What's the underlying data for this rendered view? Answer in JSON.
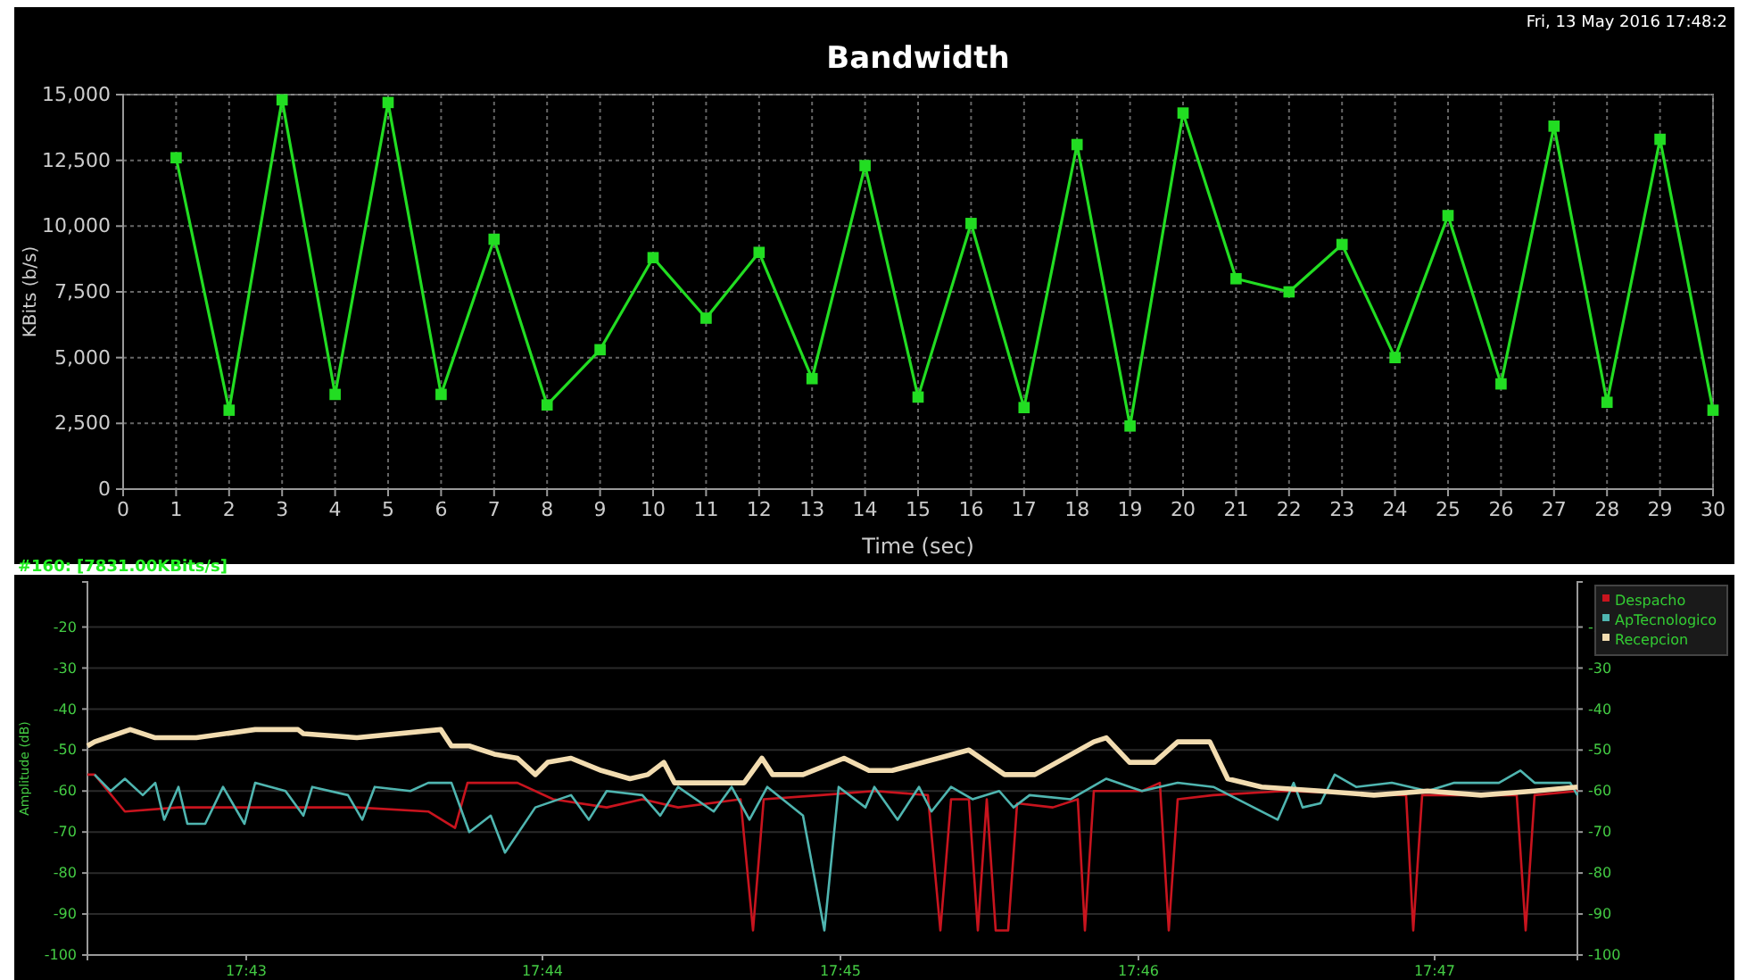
{
  "chart_data": [
    {
      "type": "line",
      "title": "Bandwidth",
      "xlabel": "Time (sec)",
      "ylabel": "KBits (b/s)",
      "annotations": [
        "Fri, 13 May 2016 17:48:2"
      ],
      "x": [
        1,
        2,
        3,
        4,
        5,
        6,
        7,
        8,
        9,
        10,
        11,
        12,
        13,
        14,
        15,
        16,
        17,
        18,
        19,
        20,
        21,
        22,
        23,
        24,
        25,
        26,
        27,
        28,
        29,
        30
      ],
      "series": [
        {
          "color": "#22dd22",
          "values": [
            12600,
            3000,
            14800,
            3600,
            14700,
            3600,
            9500,
            3200,
            5300,
            8800,
            6500,
            9000,
            4200,
            12300,
            3500,
            10100,
            3100,
            13100,
            2400,
            14300,
            8000,
            7500,
            9300,
            5000,
            10400,
            4000,
            13800,
            3300,
            13300,
            3000
          ]
        }
      ],
      "xlim": [
        0,
        30
      ],
      "xticks": [
        0,
        1,
        2,
        3,
        4,
        5,
        6,
        7,
        8,
        9,
        10,
        11,
        12,
        13,
        14,
        15,
        16,
        17,
        18,
        19,
        20,
        21,
        22,
        23,
        24,
        25,
        26,
        27,
        28,
        29,
        30
      ],
      "ylim": [
        0,
        15000
      ],
      "yticks": [
        0,
        {
          "value": 2500,
          "label": "2,500"
        },
        {
          "value": 5000,
          "label": "5,000"
        },
        {
          "value": 7500,
          "label": "7,500"
        },
        {
          "value": 10000,
          "label": "10,000"
        },
        {
          "value": 12500,
          "label": "12,500"
        },
        {
          "value": 15000,
          "label": "15,000"
        }
      ],
      "grid": true,
      "marker": "square",
      "legend": false
    },
    {
      "type": "line",
      "ylabel": "Amplitude (dB)",
      "annotations": [
        "#160: [7831.00KBits/s]"
      ],
      "series": [
        {
          "name": "Despacho",
          "color": "#c8141e",
          "x": [
            17.7078,
            17.7082,
            17.7099,
            17.7129,
            17.7179,
            17.7229,
            17.7269,
            17.7284,
            17.7291,
            17.7319,
            17.7339,
            17.7369,
            17.7389,
            17.7409,
            17.7444,
            17.7451,
            17.7457,
            17.7489,
            17.7519,
            17.7549,
            17.7556,
            17.7562,
            17.7572,
            17.7577,
            17.7582,
            17.7587,
            17.7594,
            17.7599,
            17.7619,
            17.7633,
            17.7637,
            17.7642,
            17.7669,
            17.7679,
            17.7684,
            17.7689,
            17.7709,
            17.7749,
            17.7817,
            17.7821,
            17.7826,
            17.7879,
            17.7884,
            17.7889,
            17.7913
          ],
          "values": [
            -56,
            -56,
            -65,
            -64,
            -64,
            -64,
            -65,
            -69,
            -58,
            -58,
            -62,
            -64,
            -62,
            -64,
            -62,
            -94,
            -62,
            -61,
            -60,
            -61,
            -94,
            -62,
            -62,
            -94,
            -62,
            -94,
            -94,
            -63,
            -64,
            -62,
            -94,
            -60,
            -60,
            -58,
            -94,
            -62,
            -61,
            -60,
            -61,
            -94,
            -61,
            -61,
            -94,
            -61,
            -60
          ]
        },
        {
          "name": "ApTecnologico",
          "color": "#4fb5b0",
          "x": [
            17.7082,
            17.7091,
            17.7099,
            17.7109,
            17.7116,
            17.7121,
            17.7129,
            17.7134,
            17.7144,
            17.7154,
            17.7166,
            17.7172,
            17.7189,
            17.7199,
            17.7204,
            17.7224,
            17.7232,
            17.7239,
            17.7259,
            17.7269,
            17.7282,
            17.7292,
            17.7304,
            17.7312,
            17.7329,
            17.7349,
            17.7359,
            17.7369,
            17.7389,
            17.7399,
            17.7409,
            17.7429,
            17.7439,
            17.7449,
            17.7459,
            17.7479,
            17.7491,
            17.7499,
            17.7514,
            17.7519,
            17.7532,
            17.7544,
            17.7551,
            17.7562,
            17.7574,
            17.7589,
            17.7597,
            17.7606,
            17.7629,
            17.7649,
            17.7669,
            17.7689,
            17.7709,
            17.7745,
            17.7754,
            17.7759,
            17.7769,
            17.7777,
            17.7789,
            17.7809,
            17.7829,
            17.7844,
            17.7869,
            17.7881,
            17.7889,
            17.7909,
            17.7913
          ],
          "values": [
            -56,
            -60,
            -57,
            -61,
            -58,
            -67,
            -59,
            -68,
            -68,
            -59,
            -68,
            -58,
            -60,
            -66,
            -59,
            -61,
            -67,
            -59,
            -60,
            -58,
            -58,
            -70,
            -66,
            -75,
            -64,
            -61,
            -67,
            -60,
            -61,
            -66,
            -59,
            -65,
            -59,
            -67,
            -59,
            -66,
            -94,
            -59,
            -64,
            -59,
            -67,
            -59,
            -65,
            -59,
            -62,
            -60,
            -64,
            -61,
            -62,
            -57,
            -60,
            -58,
            -59,
            -67,
            -58,
            -64,
            -63,
            -56,
            -59,
            -58,
            -60,
            -58,
            -58,
            -55,
            -58,
            -58,
            -61
          ]
        },
        {
          "name": "Recepcion",
          "color": "#f2dcb0",
          "x": [
            17.7078,
            17.7082,
            17.7102,
            17.7116,
            17.7139,
            17.7172,
            17.7196,
            17.7199,
            17.7229,
            17.7276,
            17.7282,
            17.7292,
            17.7306,
            17.7319,
            17.7329,
            17.7336,
            17.7349,
            17.7366,
            17.7382,
            17.7392,
            17.7401,
            17.7407,
            17.7446,
            17.7456,
            17.7462,
            17.7479,
            17.7502,
            17.7516,
            17.7529,
            17.7572,
            17.7592,
            17.7609,
            17.7642,
            17.7649,
            17.7662,
            17.7676,
            17.7689,
            17.7707,
            17.7717,
            17.7736,
            17.7769,
            17.7799,
            17.7829,
            17.7859,
            17.7889,
            17.7913
          ],
          "values": [
            -49,
            -48,
            -45,
            -47,
            -47,
            -45,
            -45,
            -46,
            -47,
            -45,
            -49,
            -49,
            -51,
            -52,
            -56,
            -53,
            -52,
            -55,
            -57,
            -56,
            -53,
            -58,
            -58,
            -52,
            -56,
            -56,
            -52,
            -55,
            -55,
            -50,
            -56,
            -56,
            -48,
            -47,
            -53,
            -53,
            -48,
            -48,
            -57,
            -59,
            -60,
            -61,
            -60,
            -61,
            -60,
            -59
          ]
        }
      ],
      "xlim": [
        17.7078,
        17.7913
      ],
      "xticks": [
        {
          "value": 17.7167,
          "label": "17:43"
        },
        {
          "value": 17.7333,
          "label": "17:44"
        },
        {
          "value": 17.75,
          "label": "17:45"
        },
        {
          "value": 17.7667,
          "label": "17:46"
        },
        {
          "value": 17.7833,
          "label": "17:47"
        }
      ],
      "ylim": [
        -100,
        -9
      ],
      "yticks": [
        -100,
        -90,
        -80,
        -70,
        -60,
        -50,
        -40,
        -30,
        -20
      ],
      "y2lim": [
        -100,
        -9
      ],
      "y2ticks": [
        -100,
        -90,
        -80,
        -70,
        -60,
        -50,
        -40,
        -30,
        -20
      ],
      "grid": "y",
      "marker": "none",
      "legend": "top right"
    }
  ]
}
